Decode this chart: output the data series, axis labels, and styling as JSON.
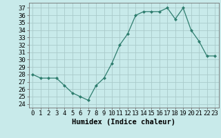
{
  "x": [
    0,
    1,
    2,
    3,
    4,
    5,
    6,
    7,
    8,
    9,
    10,
    11,
    12,
    13,
    14,
    15,
    16,
    17,
    18,
    19,
    20,
    21,
    22,
    23
  ],
  "y": [
    28,
    27.5,
    27.5,
    27.5,
    26.5,
    25.5,
    25,
    24.5,
    26.5,
    27.5,
    29.5,
    32,
    33.5,
    36,
    36.5,
    36.5,
    36.5,
    37,
    35.5,
    37,
    34,
    32.5,
    30.5,
    30.5
  ],
  "line_color": "#2e7d6e",
  "marker_color": "#2e7d6e",
  "bg_color": "#c8eaea",
  "grid_color": "#aacaca",
  "xlabel": "Humidex (Indice chaleur)",
  "ylabel_ticks": [
    24,
    25,
    26,
    27,
    28,
    29,
    30,
    31,
    32,
    33,
    34,
    35,
    36,
    37
  ],
  "ylim": [
    23.5,
    37.7
  ],
  "xlim": [
    -0.5,
    23.5
  ],
  "xtick_labels": [
    "0",
    "1",
    "2",
    "3",
    "4",
    "5",
    "6",
    "7",
    "8",
    "9",
    "10",
    "11",
    "12",
    "13",
    "14",
    "15",
    "16",
    "17",
    "18",
    "19",
    "20",
    "21",
    "22",
    "23"
  ],
  "tick_fontsize": 6.5,
  "xlabel_fontsize": 7.5
}
